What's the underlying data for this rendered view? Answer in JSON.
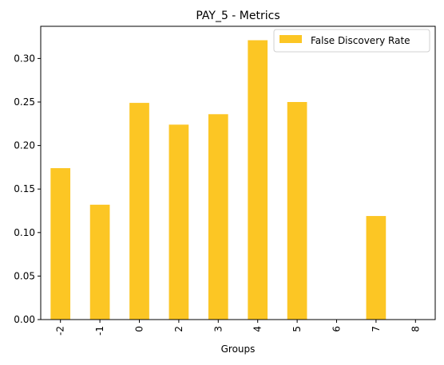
{
  "chart_data": {
    "type": "bar",
    "title": "PAY_5 - Metrics",
    "xlabel": "Groups",
    "ylabel": "",
    "categories": [
      "-2",
      "-1",
      "0",
      "2",
      "3",
      "4",
      "5",
      "6",
      "7",
      "8"
    ],
    "series": [
      {
        "name": "False Discovery Rate",
        "values": [
          0.174,
          0.132,
          0.249,
          0.224,
          0.236,
          0.321,
          0.25,
          0.0,
          0.119,
          0.0
        ],
        "color": "#fcc624"
      }
    ],
    "ylim": [
      0,
      0.337
    ],
    "yticks": [
      0.0,
      0.05,
      0.1,
      0.15,
      0.2,
      0.25,
      0.3
    ],
    "ytick_labels": [
      "0.00",
      "0.05",
      "0.10",
      "0.15",
      "0.20",
      "0.25",
      "0.30"
    ],
    "grid": false,
    "legend_position": "top-right"
  }
}
